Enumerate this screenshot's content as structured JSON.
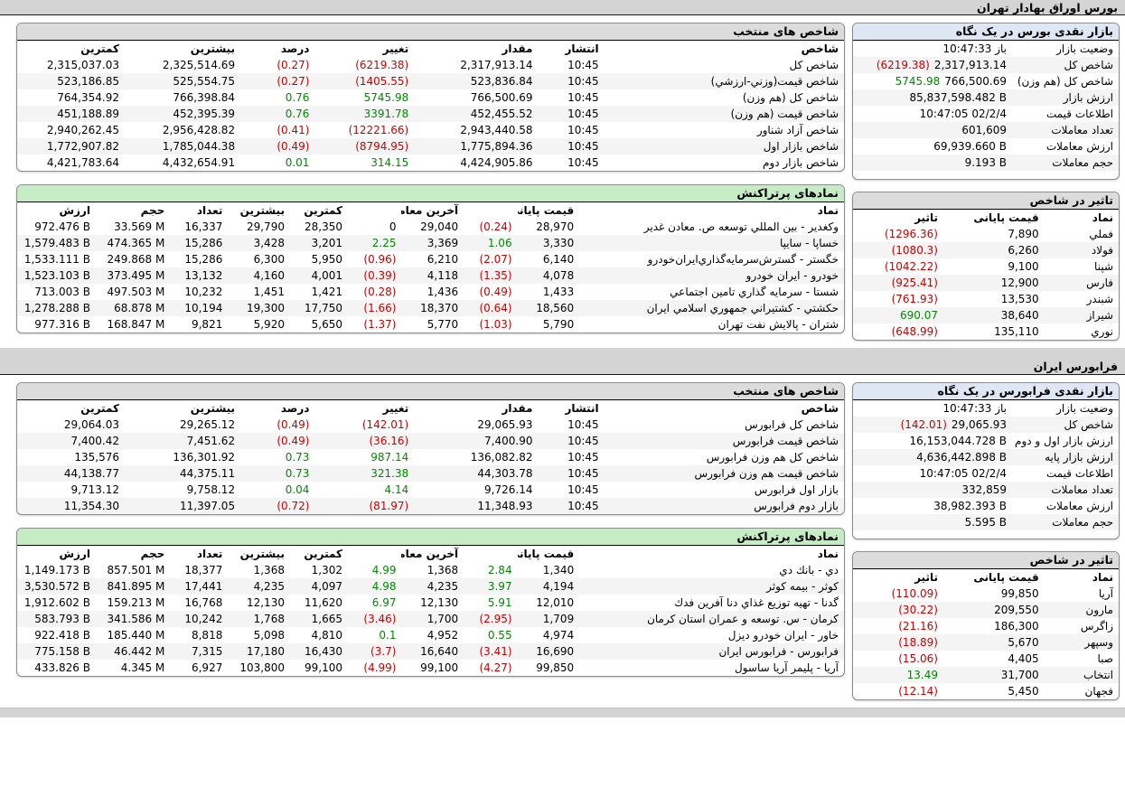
{
  "page": {
    "title": "بورس اوراق بهادار تهران",
    "farabourse_title": "فرابورس ایران"
  },
  "colors": {
    "negative": "#cc0000",
    "positive": "#008a00",
    "panel_header_gray": "#dcdcdc",
    "active_header_green": "#c6ecc6",
    "glance_header_blue": "#dfe7f5",
    "window_bar_gray": "#d4d4d4"
  },
  "bourse": {
    "glance": {
      "title": "بازار نقدی بورس در یک نگاه",
      "rows": [
        {
          "label": "وضعیت بازار",
          "value": "باز 10:47:33",
          "rtl": true
        },
        {
          "label": "شاخص کل",
          "value": "2,317,913.14",
          "change": "(6219.38)"
        },
        {
          "label": "شاخص کل (هم وزن)",
          "value": "766,500.69",
          "change": "5745.98"
        },
        {
          "label": "ارزش بازار",
          "value": "85,837,598.482 B"
        },
        {
          "label": "اطلاعات قیمت",
          "value": "10:47:05 02/2/4"
        },
        {
          "label": "تعداد معاملات",
          "value": "601,609"
        },
        {
          "label": "ارزش معاملات",
          "value": "69,939.660 B"
        },
        {
          "label": "حجم معاملات",
          "value": "9.193 B"
        }
      ]
    },
    "indices": {
      "title": "شاخص های منتخب",
      "headers": [
        "شاخص",
        "انتشار",
        "مقدار",
        "تغییر",
        "درصد",
        "بیشترین",
        "کمترین"
      ],
      "rows": [
        [
          "شاخص کل",
          "10:45",
          "2,317,913.14",
          "(6219.38)",
          "(0.27)",
          "2,325,514.69",
          "2,315,037.03"
        ],
        [
          "شاخص قیمت(وزني-ارزشي)",
          "10:45",
          "523,836.84",
          "(1405.55)",
          "(0.27)",
          "525,554.75",
          "523,186.85"
        ],
        [
          "شاخص کل (هم وزن)",
          "10:45",
          "766,500.69",
          "5745.98",
          "0.76",
          "766,398.84",
          "764,354.92"
        ],
        [
          "شاخص قیمت (هم وزن)",
          "10:45",
          "452,455.52",
          "3391.78",
          "0.76",
          "452,395.39",
          "451,188.89"
        ],
        [
          "شاخص آزاد شناور",
          "10:45",
          "2,943,440.58",
          "(12221.66)",
          "(0.41)",
          "2,956,428.82",
          "2,940,262.45"
        ],
        [
          "شاخص بازار اول",
          "10:45",
          "1,775,894.36",
          "(8794.95)",
          "(0.49)",
          "1,785,044.38",
          "1,772,907.82"
        ],
        [
          "شاخص بازار دوم",
          "10:45",
          "4,424,905.86",
          "314.15",
          "0.01",
          "4,432,654.91",
          "4,421,783.64"
        ]
      ]
    },
    "active": {
      "title": "نمادهای پرتراکنش",
      "headers": [
        "نماد",
        "قیمت پایانی",
        "آخرین معامله",
        "کمترین",
        "بیشترین",
        "تعداد",
        "حجم",
        "ارزش"
      ],
      "rows": [
        [
          "وکغدیر - بین المللي توسعه ص. معادن غدیر",
          "28,970",
          "(0.24)",
          "29,040",
          "0",
          "28,350",
          "29,790",
          "16,337",
          "33.569 M",
          "972.476 B"
        ],
        [
          "خساپا - سایپا",
          "3,330",
          "1.06",
          "3,369",
          "2.25",
          "3,201",
          "3,428",
          "15,286",
          "474.365 M",
          "1,579.483 B"
        ],
        [
          "خگستر - گسترش‌سرمایه‌گذاري‌ایران‌خودرو",
          "6,140",
          "(2.07)",
          "6,210",
          "(0.96)",
          "5,950",
          "6,300",
          "15,286",
          "249.868 M",
          "1,533.111 B"
        ],
        [
          "خودرو - ایران خودرو",
          "4,078",
          "(1.35)",
          "4,118",
          "(0.39)",
          "4,001",
          "4,160",
          "13,132",
          "373.495 M",
          "1,523.103 B"
        ],
        [
          "شستا - سرمایه گذاري تامین اجتماعي",
          "1,433",
          "(0.49)",
          "1,436",
          "(0.28)",
          "1,421",
          "1,451",
          "10,232",
          "497.503 M",
          "713.003 B"
        ],
        [
          "حکشتي - کشتیراني جمهوري اسلامي ایران",
          "18,560",
          "(0.64)",
          "18,370",
          "(1.66)",
          "17,750",
          "19,300",
          "10,194",
          "68.878 M",
          "1,278.288 B"
        ],
        [
          "شتران - پالایش نفت تهران",
          "5,790",
          "(1.03)",
          "5,770",
          "(1.37)",
          "5,650",
          "5,920",
          "9,821",
          "168.847 M",
          "977.316 B"
        ]
      ]
    },
    "impact": {
      "title": "تاثیر در شاخص",
      "headers": [
        "نماد",
        "قیمت پایانی",
        "تاثیر"
      ],
      "rows": [
        [
          "فملي",
          "7,890",
          "(1296.36)"
        ],
        [
          "فولاد",
          "6,260",
          "(1080.3)"
        ],
        [
          "شپنا",
          "9,100",
          "(1042.22)"
        ],
        [
          "فارس",
          "12,900",
          "(925.41)"
        ],
        [
          "شبندر",
          "13,530",
          "(761.93)"
        ],
        [
          "شیراز",
          "38,640",
          "690.07"
        ],
        [
          "نوري",
          "135,110",
          "(648.99)"
        ]
      ]
    }
  },
  "farabourse": {
    "glance": {
      "title": "بازار نقدی فرابورس در یک نگاه",
      "rows": [
        {
          "label": "وضعیت بازار",
          "value": "باز 10:47:33",
          "rtl": true
        },
        {
          "label": "شاخص کل",
          "value": "29,065.93",
          "change": "(142.01)"
        },
        {
          "label": "ارزش بازار اول و دوم",
          "value": "16,153,044.728 B"
        },
        {
          "label": "ارزش بازار پایه",
          "value": "4,636,442.898 B"
        },
        {
          "label": "اطلاعات قیمت",
          "value": "10:47:05 02/2/4"
        },
        {
          "label": "تعداد معاملات",
          "value": "332,859"
        },
        {
          "label": "ارزش معاملات",
          "value": "38,982.393 B"
        },
        {
          "label": "حجم معاملات",
          "value": "5.595 B"
        }
      ]
    },
    "indices": {
      "title": "شاخص های منتخب",
      "headers": [
        "شاخص",
        "انتشار",
        "مقدار",
        "تغییر",
        "درصد",
        "بیشترین",
        "کمترین"
      ],
      "rows": [
        [
          "شاخص کل فرابورس",
          "10:45",
          "29,065.93",
          "(142.01)",
          "(0.49)",
          "29,265.12",
          "29,064.03"
        ],
        [
          "شاخص قیمت فرابورس",
          "10:45",
          "7,400.90",
          "(36.16)",
          "(0.49)",
          "7,451.62",
          "7,400.42"
        ],
        [
          "شاخص کل هم وزن فرابورس",
          "10:45",
          "136,082.82",
          "987.14",
          "0.73",
          "136,301.92",
          "135,576"
        ],
        [
          "شاخص قیمت هم وزن فرابورس",
          "10:45",
          "44,303.78",
          "321.38",
          "0.73",
          "44,375.11",
          "44,138.77"
        ],
        [
          "بازار اول فرابورس",
          "10:45",
          "9,726.14",
          "4.14",
          "0.04",
          "9,758.12",
          "9,713.12"
        ],
        [
          "بازار دوم فرابورس",
          "10:45",
          "11,348.93",
          "(81.97)",
          "(0.72)",
          "11,397.05",
          "11,354.30"
        ]
      ]
    },
    "active": {
      "title": "نمادهای پرتراکنش",
      "headers": [
        "نماد",
        "قیمت پایانی",
        "آخرین معامله",
        "کمترین",
        "بیشترین",
        "تعداد",
        "حجم",
        "ارزش"
      ],
      "rows": [
        [
          "دي - بانك دي",
          "1,340",
          "2.84",
          "1,368",
          "4.99",
          "1,302",
          "1,368",
          "18,377",
          "857.501 M",
          "1,149.173 B"
        ],
        [
          "کوثر - بیمه کوثر",
          "4,194",
          "3.97",
          "4,235",
          "4.98",
          "4,097",
          "4,235",
          "17,441",
          "841.895 M",
          "3,530.572 B"
        ],
        [
          "گدنا - تهیه توزیع غذاي دنا آفرین فدك",
          "12,010",
          "5.91",
          "12,130",
          "6.97",
          "11,620",
          "12,130",
          "16,768",
          "159.213 M",
          "1,912.602 B"
        ],
        [
          "کرمان - س. توسعه و عمران استان کرمان",
          "1,709",
          "(2.95)",
          "1,700",
          "(3.46)",
          "1,665",
          "1,768",
          "10,242",
          "341.586 M",
          "583.793 B"
        ],
        [
          "خاور - ایران خودرو دیزل",
          "4,974",
          "0.55",
          "4,952",
          "0.1",
          "4,810",
          "5,098",
          "8,818",
          "185.440 M",
          "922.418 B"
        ],
        [
          "فرابورس - فرابورس ایران",
          "16,690",
          "(3.41)",
          "16,640",
          "(3.7)",
          "16,430",
          "17,180",
          "7,315",
          "46.442 M",
          "775.158 B"
        ],
        [
          "آریا - پلیمر آریا ساسول",
          "99,850",
          "(4.27)",
          "99,100",
          "(4.99)",
          "99,100",
          "103,800",
          "6,927",
          "4.345 M",
          "433.826 B"
        ]
      ]
    },
    "impact": {
      "title": "تاثیر در شاخص",
      "headers": [
        "نماد",
        "قیمت پایانی",
        "تاثیر"
      ],
      "rows": [
        [
          "آریا",
          "99,850",
          "(110.09)"
        ],
        [
          "مارون",
          "209,550",
          "(30.22)"
        ],
        [
          "زاگرس",
          "186,300",
          "(21.16)"
        ],
        [
          "وسپهر",
          "5,670",
          "(18.89)"
        ],
        [
          "صبا",
          "4,405",
          "(15.06)"
        ],
        [
          "انتخاب",
          "31,700",
          "13.49"
        ],
        [
          "فجهان",
          "5,450",
          "(12.14)"
        ]
      ]
    }
  }
}
